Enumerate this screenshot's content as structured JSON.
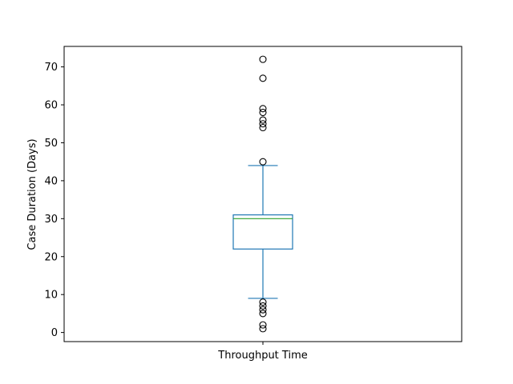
{
  "chart_data": {
    "type": "box",
    "title": "",
    "xlabel": "",
    "ylabel": "Case Duration (Days)",
    "ylim": [
      -2.4,
      75.4
    ],
    "yticks": [
      0,
      10,
      20,
      30,
      40,
      50,
      60,
      70
    ],
    "categories": [
      "Throughput Time"
    ],
    "boxes": [
      {
        "label": "Throughput Time",
        "whisker_low": 9,
        "q1": 22,
        "median": 30,
        "q3": 31,
        "whisker_high": 44,
        "outliers": [
          1,
          2,
          5,
          6,
          7,
          8,
          45,
          54,
          55,
          56,
          58,
          59,
          67,
          72
        ]
      }
    ],
    "grid": false,
    "colors": {
      "box": "#1f77b4",
      "median": "#2ca02c",
      "outlier": "#000000",
      "axes": "#000000"
    }
  }
}
